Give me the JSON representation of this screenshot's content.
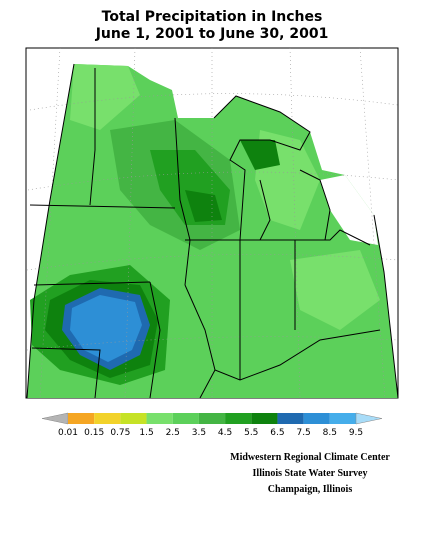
{
  "header": {
    "title_lines": [
      "Total Precipitation in Inches",
      "June 1, 2001 to June 30, 2001"
    ]
  },
  "legend": {
    "labels": [
      "0.01",
      "0.15",
      "0.75",
      "1.5",
      "2.5",
      "3.5",
      "4.5",
      "5.5",
      "6.5",
      "7.5",
      "8.5",
      "9.5"
    ],
    "colors": [
      "#b4b4b4",
      "#f5a623",
      "#f2d22a",
      "#c6e226",
      "#78e06c",
      "#5cd05a",
      "#44b544",
      "#21a021",
      "#0e820e",
      "#1f6ab0",
      "#2d8fd6",
      "#45adea",
      "#a8dcf8"
    ]
  },
  "credits": [
    "Midwestern Regional Climate Center",
    "Illinois State Water Survey",
    "Champaign, Illinois"
  ]
}
